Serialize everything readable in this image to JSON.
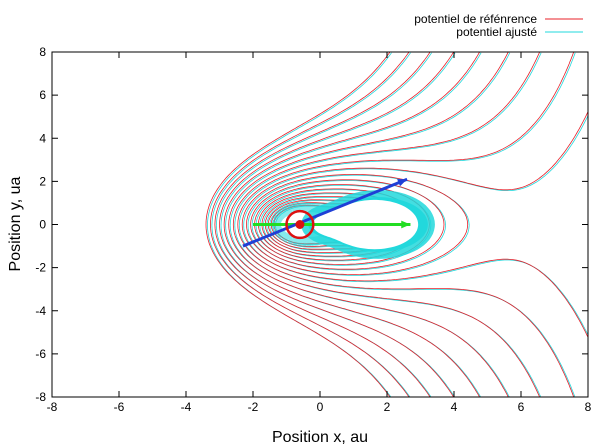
{
  "chart_data": {
    "type": "line",
    "title": "",
    "xlabel": "Position x, au",
    "ylabel": "Position y, ua",
    "xlim": [
      -8,
      8
    ],
    "ylim": [
      -8,
      8
    ],
    "x_ticks": [
      -8,
      -6,
      -4,
      -2,
      0,
      2,
      4,
      6,
      8
    ],
    "y_ticks": [
      -8,
      -6,
      -4,
      -2,
      0,
      2,
      4,
      6,
      8
    ],
    "grid": false,
    "legend_position": "top-right",
    "series": [
      {
        "name": "potentiel de réfénrence",
        "color": "#e8202a",
        "style": "contour lines"
      },
      {
        "name": "potentiel ajusté",
        "color": "#22d8dc",
        "style": "contour lines"
      }
    ],
    "annotations": {
      "blue_arrow": {
        "from": [
          -2.3,
          -1.0
        ],
        "to": [
          2.6,
          2.1
        ],
        "color": "#1f3fd6"
      },
      "green_arrow": {
        "from": [
          -2.0,
          0.0
        ],
        "to": [
          2.7,
          0.0
        ],
        "color": "#22dd22"
      },
      "center_point": {
        "x": -0.6,
        "y": 0.0,
        "color": "#dd1111"
      },
      "center_circle": {
        "x": -0.6,
        "y": 0.0,
        "radius": 0.4,
        "color": "#dd1111"
      }
    }
  }
}
